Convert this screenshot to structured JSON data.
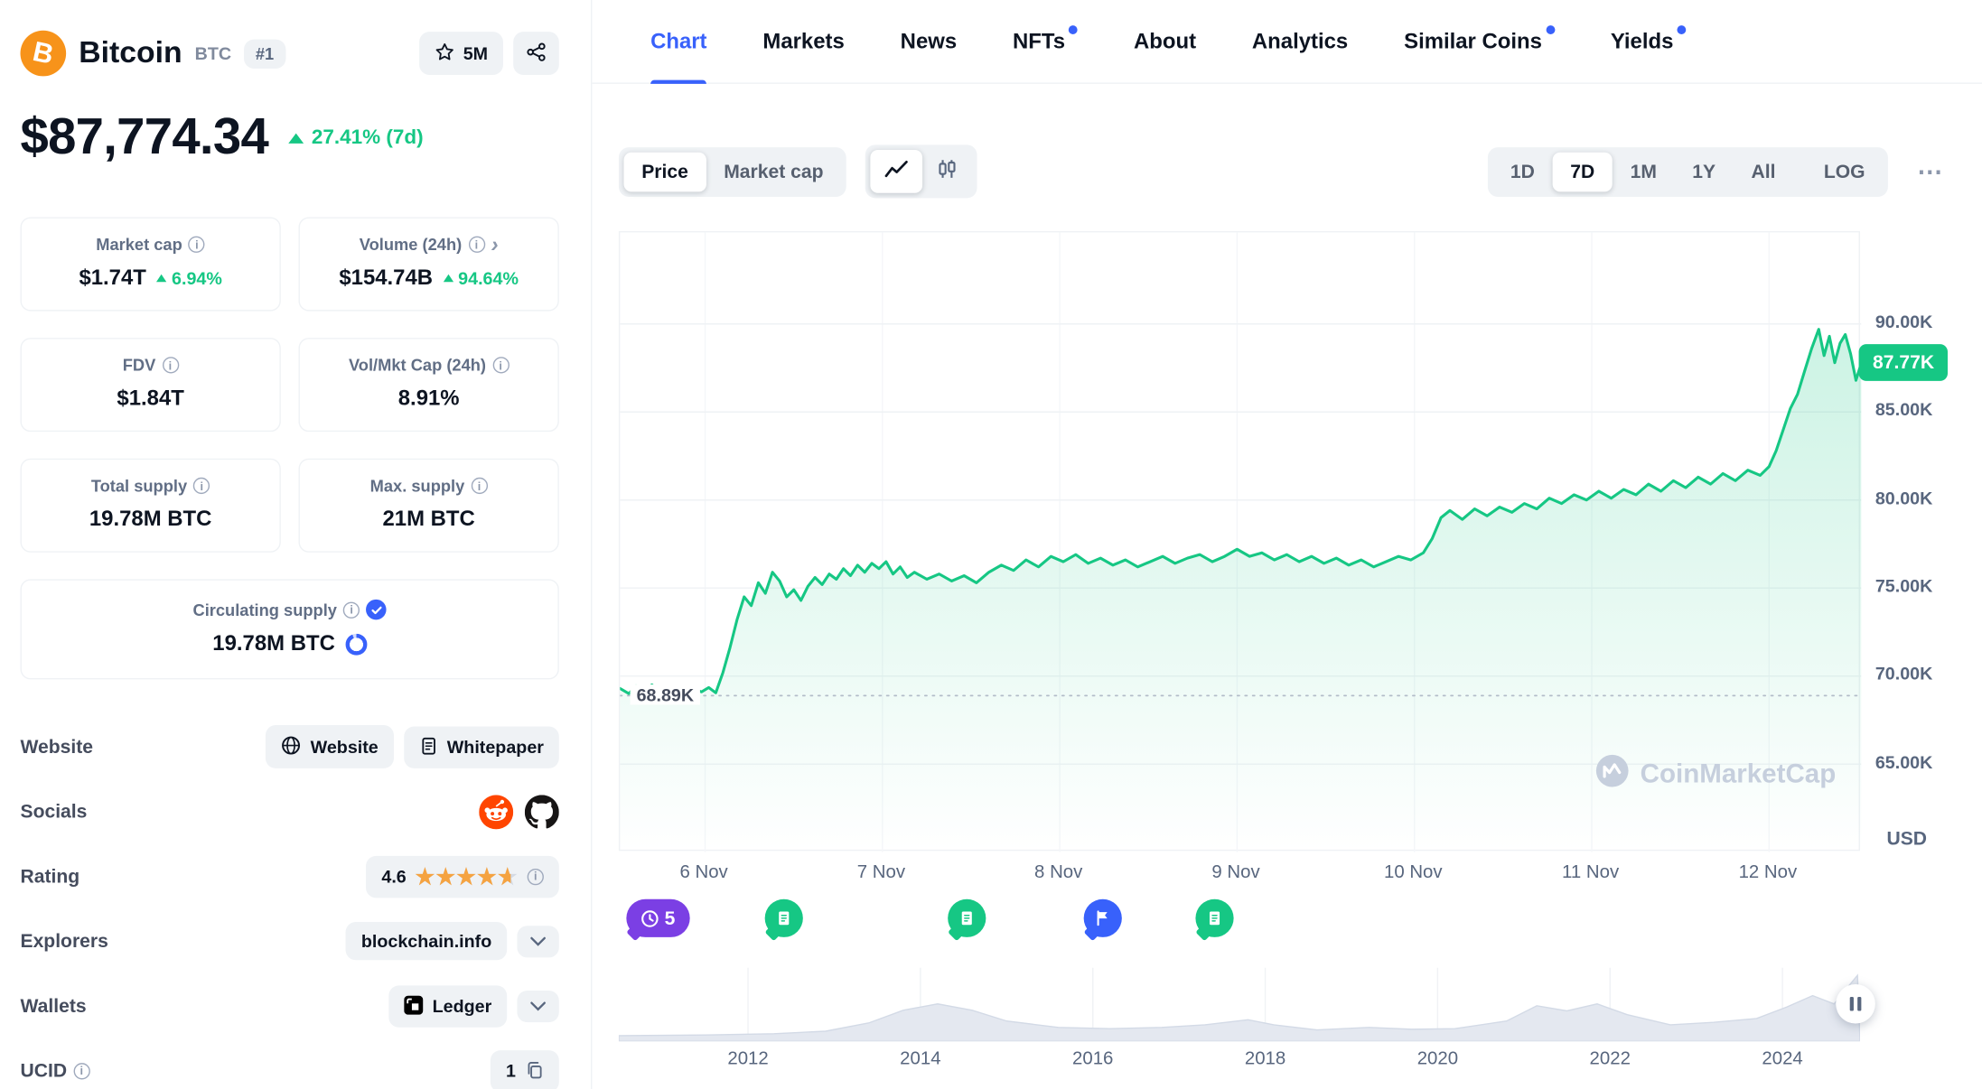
{
  "sidebar": {
    "coin": {
      "name": "Bitcoin",
      "symbol": "BTC",
      "rank": "#1"
    },
    "watchlist_count": "5M",
    "price": "$87,774.34",
    "change": "27.41% (7d)",
    "stats": {
      "market_cap": {
        "label": "Market cap",
        "value": "$1.74T",
        "change": "6.94%"
      },
      "volume": {
        "label": "Volume (24h)",
        "value": "$154.74B",
        "change": "94.64%"
      },
      "fdv": {
        "label": "FDV",
        "value": "$1.84T"
      },
      "vol_mkt_cap": {
        "label": "Vol/Mkt Cap (24h)",
        "value": "8.91%"
      },
      "total_supply": {
        "label": "Total supply",
        "value": "19.78M BTC"
      },
      "max_supply": {
        "label": "Max. supply",
        "value": "21M BTC"
      },
      "circulating_supply": {
        "label": "Circulating supply",
        "value": "19.78M BTC"
      }
    },
    "rows": {
      "website": {
        "label": "Website",
        "buttons": [
          "Website",
          "Whitepaper"
        ]
      },
      "socials": {
        "label": "Socials"
      },
      "rating": {
        "label": "Rating",
        "value": "4.6"
      },
      "explorers": {
        "label": "Explorers",
        "value": "blockchain.info"
      },
      "wallets": {
        "label": "Wallets",
        "value": "Ledger"
      },
      "ucid": {
        "label": "UCID",
        "value": "1"
      }
    }
  },
  "nav": {
    "tabs": [
      {
        "label": "Chart",
        "active": true
      },
      {
        "label": "Markets"
      },
      {
        "label": "News"
      },
      {
        "label": "NFTs",
        "dot": true
      },
      {
        "label": "About"
      },
      {
        "label": "Analytics"
      },
      {
        "label": "Similar Coins",
        "dot": true
      },
      {
        "label": "Yields",
        "dot": true
      }
    ]
  },
  "controls": {
    "mode_price": "Price",
    "mode_marketcap": "Market cap",
    "ranges": [
      "1D",
      "7D",
      "1M",
      "1Y",
      "All",
      "LOG"
    ],
    "active_range": "7D",
    "more": "⋯"
  },
  "icons": {
    "watchlist": "star-outline",
    "share": "share-nodes",
    "chart_type": [
      "line-chart",
      "candlestick-chart"
    ],
    "events": [
      "history-clock",
      "article-doc",
      "flag"
    ],
    "pause": "pause-bars"
  },
  "colors": {
    "green": "#16c784",
    "blue": "#3861fb",
    "purple": "#7b3fe4",
    "orange": "#f7931a"
  },
  "chart_data": {
    "type": "line",
    "title": "Bitcoin price, 7 days",
    "unit": "USD",
    "line_color": "#16c784",
    "current_label": "87.77K",
    "current_value": 87.77,
    "annotation": {
      "label": "68.89K",
      "value": 68.89
    },
    "y_ticks": [
      "90.00K",
      "85.00K",
      "80.00K",
      "75.00K",
      "70.00K",
      "65.00K"
    ],
    "y_tick_values": [
      90,
      85,
      80,
      75,
      70,
      65
    ],
    "ylim": [
      60,
      95.2
    ],
    "x_labels": [
      "6 Nov",
      "7 Nov",
      "8 Nov",
      "9 Nov",
      "10 Nov",
      "11 Nov",
      "12 Nov"
    ],
    "x_label_days": [
      6,
      7,
      8,
      9,
      10,
      11,
      12
    ],
    "xlim": [
      5.52,
      12.52
    ],
    "points": [
      [
        5.52,
        69.3
      ],
      [
        5.57,
        69.0
      ],
      [
        5.61,
        69.45
      ],
      [
        5.65,
        69.1
      ],
      [
        5.7,
        69.5
      ],
      [
        5.74,
        69.15
      ],
      [
        5.78,
        69.4
      ],
      [
        5.82,
        69.0
      ],
      [
        5.86,
        69.3
      ],
      [
        5.9,
        68.89
      ],
      [
        5.94,
        69.25
      ],
      [
        5.98,
        69.1
      ],
      [
        6.02,
        69.35
      ],
      [
        6.06,
        69.05
      ],
      [
        6.1,
        70.2
      ],
      [
        6.14,
        71.6
      ],
      [
        6.18,
        73.2
      ],
      [
        6.22,
        74.5
      ],
      [
        6.26,
        74.0
      ],
      [
        6.3,
        75.3
      ],
      [
        6.34,
        74.7
      ],
      [
        6.38,
        75.9
      ],
      [
        6.42,
        75.4
      ],
      [
        6.46,
        74.5
      ],
      [
        6.5,
        74.9
      ],
      [
        6.54,
        74.3
      ],
      [
        6.58,
        75.1
      ],
      [
        6.62,
        75.6
      ],
      [
        6.66,
        75.2
      ],
      [
        6.7,
        75.8
      ],
      [
        6.74,
        75.5
      ],
      [
        6.78,
        76.1
      ],
      [
        6.82,
        75.7
      ],
      [
        6.86,
        76.3
      ],
      [
        6.9,
        75.9
      ],
      [
        6.94,
        76.4
      ],
      [
        6.98,
        76.1
      ],
      [
        7.02,
        76.5
      ],
      [
        7.06,
        75.8
      ],
      [
        7.1,
        76.2
      ],
      [
        7.14,
        75.6
      ],
      [
        7.18,
        75.9
      ],
      [
        7.25,
        75.5
      ],
      [
        7.32,
        75.8
      ],
      [
        7.39,
        75.4
      ],
      [
        7.46,
        75.7
      ],
      [
        7.53,
        75.3
      ],
      [
        7.6,
        75.9
      ],
      [
        7.67,
        76.3
      ],
      [
        7.74,
        76.0
      ],
      [
        7.81,
        76.6
      ],
      [
        7.88,
        76.2
      ],
      [
        7.95,
        76.8
      ],
      [
        8.02,
        76.5
      ],
      [
        8.09,
        76.9
      ],
      [
        8.16,
        76.4
      ],
      [
        8.23,
        76.7
      ],
      [
        8.3,
        76.3
      ],
      [
        8.37,
        76.6
      ],
      [
        8.44,
        76.2
      ],
      [
        8.51,
        76.5
      ],
      [
        8.58,
        76.8
      ],
      [
        8.65,
        76.4
      ],
      [
        8.72,
        76.7
      ],
      [
        8.79,
        76.9
      ],
      [
        8.86,
        76.5
      ],
      [
        8.93,
        76.8
      ],
      [
        9.0,
        77.2
      ],
      [
        9.07,
        76.8
      ],
      [
        9.14,
        77.0
      ],
      [
        9.21,
        76.6
      ],
      [
        9.28,
        76.9
      ],
      [
        9.35,
        76.5
      ],
      [
        9.42,
        76.8
      ],
      [
        9.49,
        76.4
      ],
      [
        9.56,
        76.7
      ],
      [
        9.63,
        76.3
      ],
      [
        9.7,
        76.6
      ],
      [
        9.77,
        76.2
      ],
      [
        9.84,
        76.5
      ],
      [
        9.91,
        76.8
      ],
      [
        9.98,
        76.6
      ],
      [
        10.05,
        77.0
      ],
      [
        10.1,
        77.8
      ],
      [
        10.15,
        79.0
      ],
      [
        10.2,
        79.4
      ],
      [
        10.27,
        78.9
      ],
      [
        10.34,
        79.5
      ],
      [
        10.41,
        79.1
      ],
      [
        10.48,
        79.6
      ],
      [
        10.55,
        79.3
      ],
      [
        10.62,
        79.8
      ],
      [
        10.69,
        79.5
      ],
      [
        10.76,
        80.1
      ],
      [
        10.83,
        79.8
      ],
      [
        10.9,
        80.3
      ],
      [
        10.97,
        80.0
      ],
      [
        11.04,
        80.5
      ],
      [
        11.11,
        80.1
      ],
      [
        11.18,
        80.6
      ],
      [
        11.25,
        80.3
      ],
      [
        11.32,
        80.9
      ],
      [
        11.39,
        80.5
      ],
      [
        11.46,
        81.1
      ],
      [
        11.53,
        80.7
      ],
      [
        11.6,
        81.3
      ],
      [
        11.67,
        80.9
      ],
      [
        11.74,
        81.5
      ],
      [
        11.81,
        81.1
      ],
      [
        11.88,
        81.7
      ],
      [
        11.95,
        81.4
      ],
      [
        12.0,
        81.9
      ],
      [
        12.04,
        82.8
      ],
      [
        12.08,
        84.0
      ],
      [
        12.12,
        85.2
      ],
      [
        12.16,
        86.0
      ],
      [
        12.2,
        87.3
      ],
      [
        12.24,
        88.6
      ],
      [
        12.28,
        89.7
      ],
      [
        12.31,
        88.2
      ],
      [
        12.34,
        89.3
      ],
      [
        12.37,
        87.8
      ],
      [
        12.4,
        88.9
      ],
      [
        12.43,
        89.4
      ],
      [
        12.46,
        88.3
      ],
      [
        12.49,
        86.8
      ],
      [
        12.52,
        87.77
      ]
    ],
    "events": [
      {
        "kind": "history",
        "count": "5",
        "day": 5.74,
        "color": "#7b3fe4"
      },
      {
        "kind": "article",
        "day": 6.45,
        "color": "#16c784"
      },
      {
        "kind": "article",
        "day": 7.48,
        "color": "#16c784"
      },
      {
        "kind": "flag",
        "day": 8.25,
        "color": "#3861fb"
      },
      {
        "kind": "article",
        "day": 8.88,
        "color": "#16c784"
      }
    ],
    "minichart": {
      "xlim": [
        2010.5,
        2024.9
      ],
      "years": [
        "2012",
        "2014",
        "2016",
        "2018",
        "2020",
        "2022",
        "2024"
      ],
      "year_values": [
        2012,
        2014,
        2016,
        2018,
        2020,
        2022,
        2024
      ],
      "values": [
        [
          2010.5,
          0.05
        ],
        [
          2011.5,
          0.06
        ],
        [
          2012.3,
          0.08
        ],
        [
          2012.9,
          0.12
        ],
        [
          2013.4,
          0.25
        ],
        [
          2013.8,
          0.45
        ],
        [
          2014.2,
          0.55
        ],
        [
          2014.6,
          0.45
        ],
        [
          2015.0,
          0.28
        ],
        [
          2015.6,
          0.18
        ],
        [
          2016.2,
          0.16
        ],
        [
          2016.8,
          0.18
        ],
        [
          2017.3,
          0.22
        ],
        [
          2017.8,
          0.3
        ],
        [
          2018.1,
          0.22
        ],
        [
          2018.6,
          0.14
        ],
        [
          2019.2,
          0.18
        ],
        [
          2019.7,
          0.15
        ],
        [
          2020.2,
          0.16
        ],
        [
          2020.8,
          0.28
        ],
        [
          2021.15,
          0.52
        ],
        [
          2021.5,
          0.44
        ],
        [
          2021.85,
          0.55
        ],
        [
          2022.2,
          0.38
        ],
        [
          2022.7,
          0.22
        ],
        [
          2023.2,
          0.26
        ],
        [
          2023.7,
          0.32
        ],
        [
          2024.05,
          0.5
        ],
        [
          2024.35,
          0.68
        ],
        [
          2024.6,
          0.55
        ],
        [
          2024.87,
          1.0
        ]
      ]
    },
    "watermark": "CoinMarketCap"
  }
}
